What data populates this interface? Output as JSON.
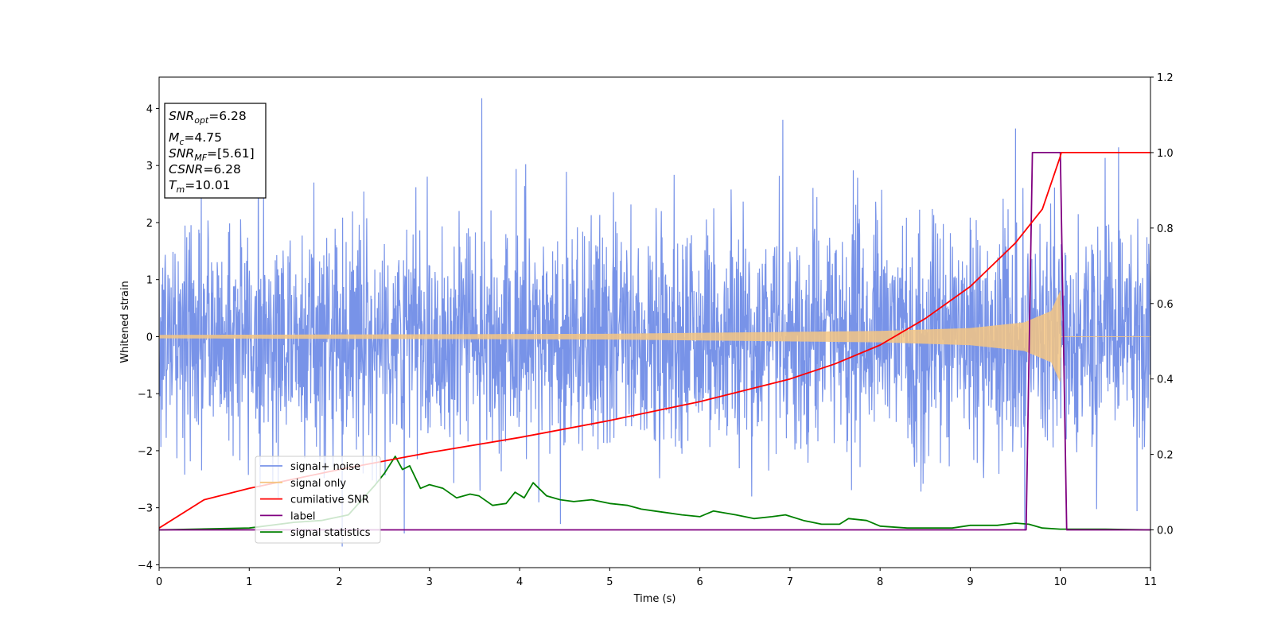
{
  "chart_data": {
    "type": "line",
    "xlabel": "Time (s)",
    "ylabel": "Whitened strain",
    "xlim": [
      0,
      11
    ],
    "ylim": [
      -4.05,
      4.55
    ],
    "y2lim": [
      -0.1,
      1.2
    ],
    "grid": false,
    "legend_position": "lower-left",
    "x_ticks": [
      0,
      1,
      2,
      3,
      4,
      5,
      6,
      7,
      8,
      9,
      10,
      11
    ],
    "y_ticks": [
      -4,
      -3,
      -2,
      -1,
      0,
      1,
      2,
      3,
      4
    ],
    "y2_ticks": [
      0.0,
      0.2,
      0.4,
      0.6,
      0.8,
      1.0,
      1.2
    ],
    "info_box": {
      "snr_opt": {
        "base": "SNR",
        "sub": "opt",
        "value": "=6.28"
      },
      "mc": {
        "base": "M",
        "sub": "c",
        "value": "=4.75"
      },
      "snr_mf": {
        "base": "SNR",
        "sub": "MF",
        "value": "=[5.61]"
      },
      "csnr": {
        "base": "CSNR",
        "value": "=6.28"
      },
      "tm": {
        "base": "T",
        "sub": "m",
        "value": "=10.01"
      }
    },
    "series": [
      {
        "name": "signal+ noise",
        "color": "#7893e8",
        "axis": "left",
        "description_values": {
          "std": 1.0,
          "spike_max": 4.18,
          "spike_min": -3.68
        }
      },
      {
        "name": "signal only",
        "color": "#f5c582",
        "axis": "left",
        "amplitude_envelope": [
          [
            0,
            0.03
          ],
          [
            5,
            0.05
          ],
          [
            8,
            0.1
          ],
          [
            9,
            0.15
          ],
          [
            9.6,
            0.25
          ],
          [
            9.9,
            0.45
          ],
          [
            10.0,
            0.8
          ],
          [
            10.01,
            0.0
          ],
          [
            11,
            0.0
          ]
        ]
      },
      {
        "name": "cumilative SNR",
        "color": "#ff0000",
        "axis": "right",
        "x": [
          0,
          0.5,
          1,
          2,
          3,
          4,
          5,
          6,
          7,
          7.5,
          8,
          8.5,
          9,
          9.5,
          9.8,
          10.0,
          10.01,
          11
        ],
        "values": [
          0.005,
          0.08,
          0.11,
          0.16,
          0.205,
          0.245,
          0.29,
          0.34,
          0.4,
          0.44,
          0.49,
          0.56,
          0.645,
          0.76,
          0.85,
          0.99,
          1.0,
          1.0
        ]
      },
      {
        "name": "label",
        "color": "#800080",
        "axis": "right",
        "x": [
          0,
          9.62,
          9.69,
          10.0,
          10.07,
          11
        ],
        "values": [
          0.0,
          0.0,
          1.0,
          1.0,
          0.0,
          0.0
        ]
      },
      {
        "name": "signal statistics",
        "color": "#008000",
        "axis": "right",
        "x": [
          0,
          1,
          1.5,
          1.8,
          2.1,
          2.4,
          2.5,
          2.62,
          2.7,
          2.78,
          2.9,
          3.0,
          3.15,
          3.3,
          3.45,
          3.55,
          3.7,
          3.85,
          3.95,
          4.05,
          4.15,
          4.3,
          4.45,
          4.6,
          4.8,
          5.0,
          5.2,
          5.35,
          5.5,
          5.65,
          5.8,
          6.0,
          6.15,
          6.4,
          6.6,
          6.8,
          6.95,
          7.15,
          7.35,
          7.55,
          7.65,
          7.85,
          8.0,
          8.3,
          8.6,
          8.8,
          9.0,
          9.3,
          9.5,
          9.65,
          9.8,
          10.0,
          10.5,
          11
        ],
        "values": [
          0.0,
          0.005,
          0.02,
          0.025,
          0.04,
          0.12,
          0.15,
          0.195,
          0.16,
          0.17,
          0.11,
          0.12,
          0.11,
          0.085,
          0.095,
          0.09,
          0.065,
          0.07,
          0.1,
          0.085,
          0.125,
          0.09,
          0.08,
          0.075,
          0.08,
          0.07,
          0.065,
          0.055,
          0.05,
          0.045,
          0.04,
          0.035,
          0.05,
          0.04,
          0.03,
          0.035,
          0.04,
          0.025,
          0.015,
          0.015,
          0.03,
          0.025,
          0.01,
          0.005,
          0.005,
          0.005,
          0.012,
          0.012,
          0.018,
          0.015,
          0.005,
          0.002,
          0.002,
          0.0
        ]
      }
    ]
  }
}
